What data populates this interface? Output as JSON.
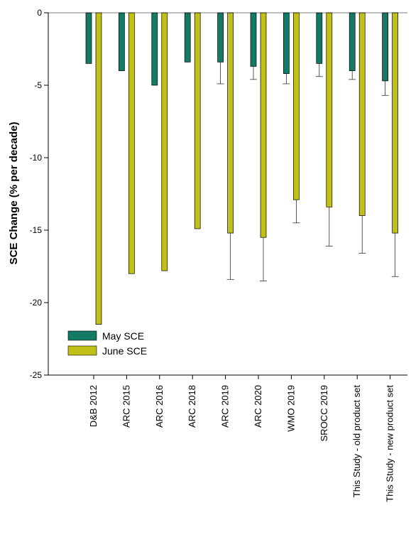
{
  "chart_data": {
    "type": "bar",
    "title": "",
    "xlabel": "",
    "ylabel": "SCE Change (% per decade)",
    "ylim": [
      -25,
      0
    ],
    "yticks": [
      0,
      -5,
      -10,
      -15,
      -20,
      -25
    ],
    "ytick_labels": [
      "0",
      "-5",
      "-10",
      "-15",
      "-20",
      "-25"
    ],
    "categories": [
      "D&B 2012",
      "ARC 2015",
      "ARC 2016",
      "ARC 2018",
      "ARC 2019",
      "ARC 2020",
      "WMO 2019",
      "SROCC 2019",
      "This Study - old product set",
      "This Study - new product set"
    ],
    "series": [
      {
        "name": "May SCE",
        "color": "#127a65",
        "values": [
          -3.5,
          -4.0,
          -5.0,
          -3.4,
          -3.4,
          -3.7,
          -4.2,
          -3.5,
          -4.0,
          -4.7
        ],
        "error_lower": [
          null,
          null,
          null,
          null,
          -4.9,
          -4.6,
          -4.9,
          -4.4,
          -4.6,
          -5.7
        ]
      },
      {
        "name": "June SCE",
        "color": "#c1c017",
        "values": [
          -21.5,
          -18.0,
          -17.8,
          -14.9,
          -15.2,
          -15.5,
          -12.9,
          -13.4,
          -14.0,
          -15.2
        ],
        "error_lower": [
          null,
          null,
          null,
          null,
          -18.4,
          -18.5,
          -14.5,
          -16.1,
          -16.6,
          -18.2
        ]
      }
    ],
    "grid": false,
    "legend_position": "bottom-left"
  }
}
